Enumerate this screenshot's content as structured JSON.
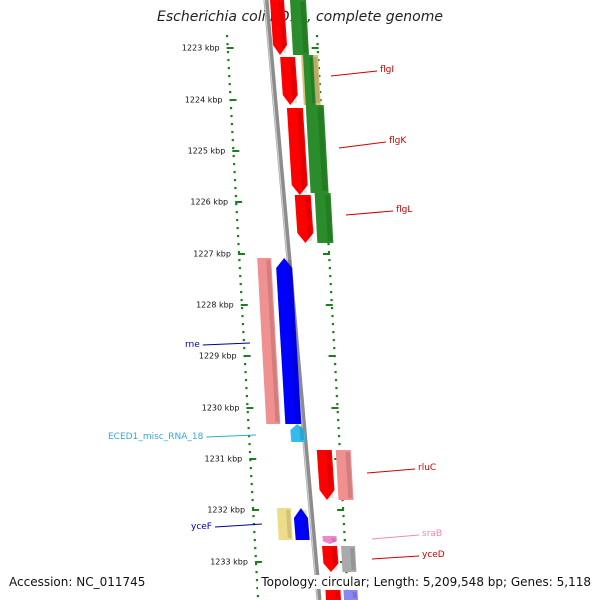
{
  "title": "Escherichia coli ED1a, complete genome",
  "footer": {
    "accession": "Accession: NC_011745",
    "summary": "Topology: circular; Length: 5,209,548 bp; Genes: 5,118"
  },
  "colors": {
    "backbone": "#8c8c8c",
    "ruler_dots": "#1e7d1e",
    "red": "#ff0000",
    "green": "#2a8c2a",
    "pink": "#f09090",
    "blue": "#0000ff",
    "cyan": "#33bbee",
    "yellow": "#eedd88",
    "tan": "#d7c27a",
    "gray": "#aaaaaa",
    "magenta_pink": "#ee88cc",
    "periwinkle": "#8888ee"
  },
  "map": {
    "scale_ticks_kbp": [
      1223,
      1224,
      1225,
      1226,
      1227,
      1228,
      1229,
      1230,
      1231,
      1232,
      1233
    ],
    "tick_unit": "kbp",
    "genes": [
      {
        "name": "flgI",
        "color": "#cc0000",
        "track": "red"
      },
      {
        "name": "flgK",
        "color": "#cc0000",
        "track": "red"
      },
      {
        "name": "flgL",
        "color": "#cc0000",
        "track": "red"
      },
      {
        "name": "rne",
        "color": "#000099",
        "track": "blue"
      },
      {
        "name": "ECED1_misc_RNA_18",
        "color": "#33aacc",
        "track": "cyan"
      },
      {
        "name": "rluC",
        "color": "#cc0000",
        "track": "red"
      },
      {
        "name": "sraB",
        "color": "#ee88bb",
        "track": "magenta_pink"
      },
      {
        "name": "yceF",
        "color": "#000099",
        "track": "blue"
      },
      {
        "name": "yceD",
        "color": "#cc0000",
        "track": "red"
      }
    ]
  }
}
